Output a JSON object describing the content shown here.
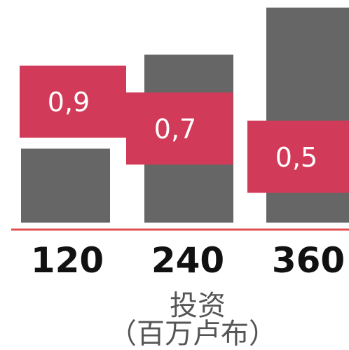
{
  "chart_data": {
    "type": "bar",
    "x": [
      "120",
      "240",
      "360"
    ],
    "series": [
      {
        "kind": "bar",
        "color": "#666666",
        "values": [
          0.55,
          1.25,
          1.6
        ]
      },
      {
        "kind": "box",
        "color": "#d13a58",
        "values": [
          0.9,
          0.7,
          0.5
        ],
        "labels": [
          "0,9",
          "0,7",
          "0,5"
        ]
      }
    ],
    "xlabel_line1": "投资",
    "xlabel_line2": "（百万卢布）",
    "axis_color": "#e05050",
    "ylim": [
      0,
      1.6
    ]
  }
}
